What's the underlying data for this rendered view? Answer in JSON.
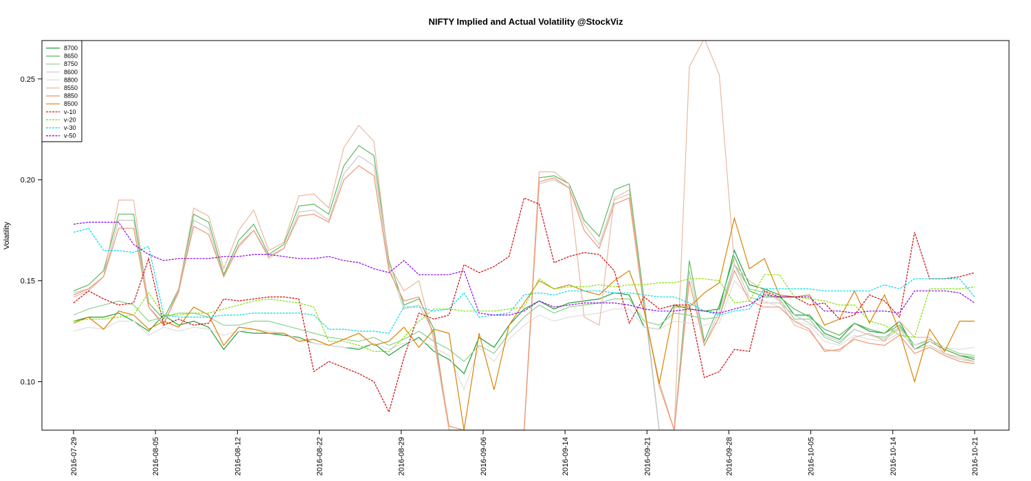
{
  "chart_data": {
    "type": "line",
    "title": "NIFTY Implied and Actual Volatility @StockViz",
    "ylabel": "Volatility",
    "xlabel": "",
    "ylim": [
      0.076,
      0.269
    ],
    "yticks": [
      0.1,
      0.15,
      0.2,
      0.25
    ],
    "ytick_labels": [
      "0.10",
      "0.15",
      "0.20",
      "0.25"
    ],
    "xtick_labels": [
      "2016-07-29",
      "2016-08-05",
      "2016-08-12",
      "2016-08-22",
      "2016-08-29",
      "2016-09-06",
      "2016-09-14",
      "2016-09-21",
      "2016-09-28",
      "2016-10-05",
      "2016-10-14",
      "2016-10-21"
    ],
    "grid": false,
    "legend_position": "top-left",
    "series": [
      {
        "name": "8700",
        "color": "#1a9e3a",
        "dash": false,
        "values": [
          0.13,
          0.132,
          0.132,
          0.134,
          0.13,
          0.125,
          0.133,
          0.128,
          0.13,
          0.127,
          0.116,
          0.125,
          0.124,
          0.124,
          0.123,
          0.122,
          0.119,
          0.118,
          0.117,
          0.116,
          0.119,
          0.113,
          0.118,
          0.122,
          0.115,
          0.111,
          0.104,
          0.122,
          0.117,
          0.128,
          0.136,
          0.14,
          0.136,
          0.139,
          0.14,
          0.141,
          0.144,
          0.143,
          0.127,
          0.126,
          0.138,
          0.136,
          0.135,
          0.136,
          0.165,
          0.148,
          0.146,
          0.143,
          0.133,
          0.133,
          0.124,
          0.121,
          0.129,
          0.125,
          0.124,
          0.13,
          0.116,
          0.12,
          0.116,
          0.113,
          0.111
        ]
      },
      {
        "name": "8650",
        "color": "#5cb85c",
        "dash": false,
        "values": [
          0.145,
          0.148,
          0.155,
          0.183,
          0.183,
          0.139,
          0.131,
          0.146,
          0.183,
          0.179,
          0.153,
          0.17,
          0.178,
          0.163,
          0.168,
          0.187,
          0.188,
          0.183,
          0.207,
          0.217,
          0.212,
          0.16,
          0.138,
          0.141,
          0.126,
          0.076,
          0.076,
          0.076,
          0.076,
          0.076,
          0.076,
          0.201,
          0.202,
          0.198,
          0.18,
          0.172,
          0.195,
          0.198,
          0.14,
          0.076,
          0.076,
          0.16,
          0.12,
          0.138,
          0.162,
          0.145,
          0.142,
          0.142,
          0.136,
          0.132,
          0.126,
          0.123,
          0.129,
          0.126,
          0.124,
          0.128,
          0.118,
          0.12,
          0.116,
          0.113,
          0.112
        ]
      },
      {
        "name": "8750",
        "color": "#8fce8f",
        "dash": false,
        "values": [
          0.133,
          0.136,
          0.138,
          0.14,
          0.138,
          0.13,
          0.132,
          0.134,
          0.134,
          0.132,
          0.128,
          0.128,
          0.13,
          0.13,
          0.128,
          0.126,
          0.124,
          0.122,
          0.121,
          0.12,
          0.122,
          0.118,
          0.121,
          0.125,
          0.12,
          0.116,
          0.11,
          0.118,
          0.114,
          0.124,
          0.132,
          0.138,
          0.134,
          0.137,
          0.138,
          0.139,
          0.141,
          0.141,
          0.13,
          0.128,
          0.134,
          0.133,
          0.131,
          0.132,
          0.158,
          0.146,
          0.144,
          0.141,
          0.131,
          0.131,
          0.122,
          0.119,
          0.126,
          0.123,
          0.122,
          0.127,
          0.118,
          0.121,
          0.117,
          0.114,
          0.113
        ]
      },
      {
        "name": "8600",
        "color": "#c8c8c8",
        "dash": false,
        "values": [
          0.144,
          0.146,
          0.152,
          0.18,
          0.18,
          0.137,
          0.129,
          0.144,
          0.18,
          0.176,
          0.152,
          0.168,
          0.175,
          0.161,
          0.166,
          0.184,
          0.185,
          0.18,
          0.203,
          0.212,
          0.207,
          0.157,
          0.136,
          0.138,
          0.124,
          0.076,
          0.076,
          0.076,
          0.076,
          0.076,
          0.076,
          0.198,
          0.2,
          0.196,
          0.178,
          0.168,
          0.19,
          0.193,
          0.138,
          0.076,
          0.076,
          0.155,
          0.118,
          0.135,
          0.158,
          0.142,
          0.139,
          0.139,
          0.133,
          0.129,
          0.123,
          0.12,
          0.126,
          0.123,
          0.121,
          0.126,
          0.116,
          0.118,
          0.114,
          0.111,
          0.11
        ]
      },
      {
        "name": "8800",
        "color": "#dedede",
        "dash": false,
        "values": [
          0.125,
          0.127,
          0.126,
          0.13,
          0.13,
          0.123,
          0.127,
          0.125,
          0.127,
          0.126,
          0.123,
          0.125,
          0.126,
          0.125,
          0.124,
          0.121,
          0.119,
          0.118,
          0.117,
          0.117,
          0.119,
          0.116,
          0.119,
          0.121,
          0.117,
          0.113,
          0.096,
          0.117,
          0.11,
          0.121,
          0.128,
          0.133,
          0.13,
          0.132,
          0.133,
          0.134,
          0.136,
          0.136,
          0.127,
          0.126,
          0.13,
          0.129,
          0.128,
          0.129,
          0.15,
          0.142,
          0.14,
          0.137,
          0.13,
          0.128,
          0.12,
          0.118,
          0.123,
          0.121,
          0.12,
          0.124,
          0.118,
          0.12,
          0.117,
          0.116,
          0.117
        ]
      },
      {
        "name": "8550",
        "color": "#e8b8a0",
        "dash": false,
        "values": [
          0.142,
          0.145,
          0.152,
          0.19,
          0.19,
          0.137,
          0.128,
          0.146,
          0.186,
          0.182,
          0.156,
          0.175,
          0.185,
          0.165,
          0.169,
          0.192,
          0.193,
          0.186,
          0.216,
          0.227,
          0.219,
          0.158,
          0.145,
          0.15,
          0.12,
          0.076,
          0.076,
          0.076,
          0.076,
          0.076,
          0.076,
          0.204,
          0.204,
          0.198,
          0.132,
          0.128,
          0.191,
          0.195,
          0.135,
          0.1,
          0.076,
          0.256,
          0.27,
          0.252,
          0.158,
          0.15,
          0.145,
          0.14,
          0.128,
          0.125,
          0.116,
          0.115,
          0.122,
          0.124,
          0.12,
          0.13,
          0.122,
          0.122,
          0.114,
          0.112,
          0.11
        ]
      },
      {
        "name": "8850",
        "color": "#f0946c",
        "dash": false,
        "values": [
          0.143,
          0.146,
          0.152,
          0.176,
          0.176,
          0.137,
          0.128,
          0.145,
          0.177,
          0.173,
          0.152,
          0.167,
          0.175,
          0.162,
          0.166,
          0.182,
          0.183,
          0.179,
          0.2,
          0.207,
          0.202,
          0.155,
          0.14,
          0.142,
          0.123,
          0.078,
          0.076,
          0.076,
          0.076,
          0.076,
          0.076,
          0.199,
          0.201,
          0.196,
          0.175,
          0.166,
          0.188,
          0.191,
          0.136,
          0.098,
          0.076,
          0.15,
          0.118,
          0.132,
          0.155,
          0.14,
          0.137,
          0.137,
          0.13,
          0.126,
          0.115,
          0.116,
          0.121,
          0.119,
          0.118,
          0.123,
          0.114,
          0.117,
          0.113,
          0.11,
          0.109
        ]
      },
      {
        "name": "8500",
        "color": "#d98200",
        "dash": false,
        "values": [
          0.129,
          0.132,
          0.126,
          0.135,
          0.133,
          0.126,
          0.13,
          0.127,
          0.137,
          0.133,
          0.118,
          0.127,
          0.126,
          0.124,
          0.124,
          0.12,
          0.121,
          0.118,
          0.121,
          0.124,
          0.118,
          0.12,
          0.127,
          0.117,
          0.126,
          0.124,
          0.076,
          0.124,
          0.096,
          0.128,
          0.139,
          0.15,
          0.146,
          0.148,
          0.145,
          0.143,
          0.15,
          0.155,
          0.135,
          0.099,
          0.137,
          0.137,
          0.144,
          0.149,
          0.181,
          0.156,
          0.161,
          0.143,
          0.142,
          0.143,
          0.128,
          0.131,
          0.145,
          0.129,
          0.143,
          0.125,
          0.1,
          0.126,
          0.115,
          0.13,
          0.13
        ]
      },
      {
        "name": "v-10",
        "color": "#cc0000",
        "dash": true,
        "values": [
          0.139,
          0.145,
          0.141,
          0.138,
          0.139,
          0.161,
          0.128,
          0.131,
          0.128,
          0.129,
          0.141,
          0.14,
          0.141,
          0.142,
          0.142,
          0.141,
          0.105,
          0.11,
          0.107,
          0.104,
          0.1,
          0.085,
          0.112,
          0.134,
          0.131,
          0.133,
          0.158,
          0.154,
          0.157,
          0.162,
          0.191,
          0.188,
          0.159,
          0.162,
          0.164,
          0.163,
          0.155,
          0.129,
          0.142,
          0.136,
          0.138,
          0.138,
          0.102,
          0.105,
          0.116,
          0.115,
          0.145,
          0.142,
          0.142,
          0.138,
          0.139,
          0.131,
          0.133,
          0.143,
          0.14,
          0.132,
          0.174,
          0.151,
          0.151,
          0.152,
          0.154
        ]
      },
      {
        "name": "v-20",
        "color": "#7ee000",
        "dash": true,
        "values": [
          0.13,
          0.131,
          0.131,
          0.132,
          0.133,
          0.144,
          0.133,
          0.133,
          0.134,
          0.134,
          0.136,
          0.138,
          0.14,
          0.141,
          0.14,
          0.139,
          0.137,
          0.12,
          0.12,
          0.118,
          0.115,
          0.115,
          0.122,
          0.13,
          0.136,
          0.136,
          0.135,
          0.135,
          0.135,
          0.136,
          0.137,
          0.151,
          0.146,
          0.147,
          0.147,
          0.148,
          0.147,
          0.148,
          0.148,
          0.149,
          0.149,
          0.151,
          0.151,
          0.15,
          0.139,
          0.14,
          0.153,
          0.153,
          0.142,
          0.141,
          0.14,
          0.138,
          0.138,
          0.13,
          0.128,
          0.123,
          0.122,
          0.146,
          0.146,
          0.146,
          0.147
        ]
      },
      {
        "name": "v-30",
        "color": "#00d8e8",
        "dash": true,
        "values": [
          0.174,
          0.176,
          0.165,
          0.165,
          0.164,
          0.167,
          0.133,
          0.132,
          0.132,
          0.132,
          0.133,
          0.133,
          0.134,
          0.134,
          0.134,
          0.134,
          0.133,
          0.126,
          0.126,
          0.125,
          0.125,
          0.124,
          0.137,
          0.137,
          0.135,
          0.136,
          0.144,
          0.132,
          0.133,
          0.134,
          0.143,
          0.144,
          0.143,
          0.145,
          0.145,
          0.145,
          0.144,
          0.144,
          0.143,
          0.142,
          0.142,
          0.139,
          0.135,
          0.133,
          0.135,
          0.136,
          0.146,
          0.146,
          0.146,
          0.146,
          0.145,
          0.145,
          0.145,
          0.145,
          0.148,
          0.146,
          0.151,
          0.151,
          0.151,
          0.151,
          0.142
        ]
      },
      {
        "name": "v-50",
        "color": "#8800e0",
        "dash": true,
        "values": [
          0.178,
          0.179,
          0.179,
          0.179,
          0.168,
          0.163,
          0.16,
          0.161,
          0.161,
          0.161,
          0.162,
          0.162,
          0.163,
          0.163,
          0.162,
          0.161,
          0.161,
          0.162,
          0.16,
          0.159,
          0.156,
          0.154,
          0.16,
          0.153,
          0.153,
          0.153,
          0.155,
          0.134,
          0.133,
          0.133,
          0.135,
          0.14,
          0.137,
          0.138,
          0.139,
          0.139,
          0.139,
          0.138,
          0.136,
          0.135,
          0.135,
          0.136,
          0.135,
          0.134,
          0.136,
          0.138,
          0.143,
          0.142,
          0.142,
          0.142,
          0.135,
          0.135,
          0.134,
          0.135,
          0.135,
          0.134,
          0.145,
          0.145,
          0.145,
          0.144,
          0.139
        ]
      }
    ]
  }
}
